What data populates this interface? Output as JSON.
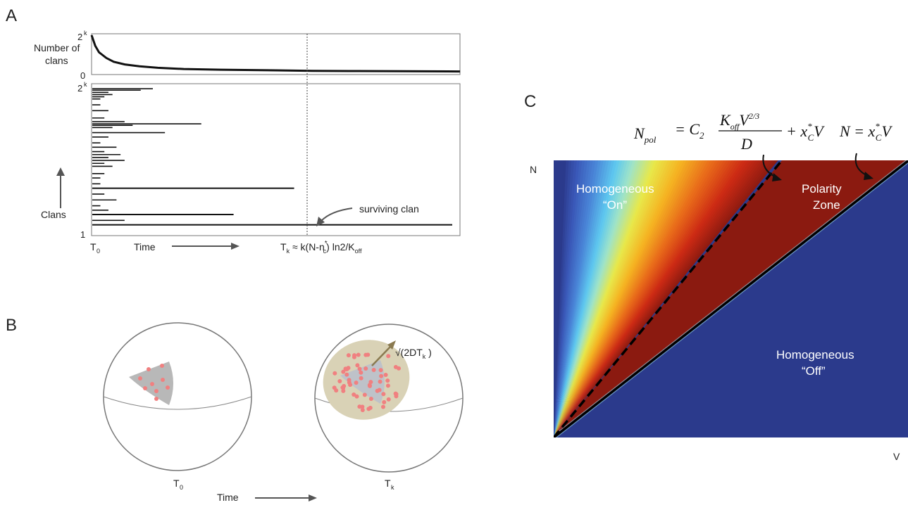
{
  "panel_a": {
    "letter": "A",
    "top_plot": {
      "y_label_line1": "Number of",
      "y_label_line2": "clans",
      "y_tick_top": "2",
      "y_tick_top_sup": "k",
      "y_tick_bottom": "0",
      "decay_curve": [
        [
          0,
          1.0
        ],
        [
          0.01,
          0.72
        ],
        [
          0.02,
          0.55
        ],
        [
          0.04,
          0.4
        ],
        [
          0.06,
          0.3
        ],
        [
          0.09,
          0.23
        ],
        [
          0.13,
          0.18
        ],
        [
          0.18,
          0.14
        ],
        [
          0.25,
          0.11
        ],
        [
          0.35,
          0.09
        ],
        [
          0.5,
          0.075
        ],
        [
          0.6,
          0.06
        ],
        [
          0.7,
          0.055
        ],
        [
          0.85,
          0.05
        ],
        [
          1.0,
          0.045
        ]
      ]
    },
    "bottom_plot": {
      "y_label": "Clans",
      "y_tick_top": "2",
      "y_tick_top_sup": "k",
      "y_tick_bottom": "1",
      "annotation": "surviving clan",
      "clan_lifetimes": [
        [
          0.02,
          0.15
        ],
        [
          0.03,
          0.12
        ],
        [
          0.045,
          0.04
        ],
        [
          0.06,
          0.05
        ],
        [
          0.075,
          0.03
        ],
        [
          0.09,
          0.02
        ],
        [
          0.13,
          0.02
        ],
        [
          0.17,
          0.04
        ],
        [
          0.22,
          0.03
        ],
        [
          0.245,
          0.08
        ],
        [
          0.26,
          0.27
        ],
        [
          0.27,
          0.1
        ],
        [
          0.285,
          0.05
        ],
        [
          0.32,
          0.18
        ],
        [
          0.35,
          0.04
        ],
        [
          0.39,
          0.02
        ],
        [
          0.42,
          0.06
        ],
        [
          0.45,
          0.03
        ],
        [
          0.47,
          0.07
        ],
        [
          0.49,
          0.04
        ],
        [
          0.51,
          0.08
        ],
        [
          0.53,
          0.03
        ],
        [
          0.55,
          0.05
        ],
        [
          0.6,
          0.03
        ],
        [
          0.63,
          0.02
        ],
        [
          0.67,
          0.02
        ],
        [
          0.7,
          0.5
        ],
        [
          0.74,
          0.03
        ],
        [
          0.78,
          0.06
        ],
        [
          0.82,
          0.02
        ],
        [
          0.85,
          0.04
        ],
        [
          0.88,
          0.35
        ],
        [
          0.92,
          0.08
        ],
        [
          0.95,
          1.0
        ]
      ],
      "dashed_x": 0.5
    },
    "x_label_t0": "T",
    "x_label_t0_sub": "0",
    "x_label_time": "Time",
    "tk_formula_parts": {
      "t": "T",
      "k_sub": "k",
      "approx": " ≈ k(N-n",
      "star_sup": "*",
      "c_sub": "c",
      "rest": ") ln2/K",
      "off_sub": "off"
    }
  },
  "panel_b": {
    "letter": "B",
    "t0_label": "T",
    "t0_sub": "0",
    "tk_label": "T",
    "tk_sub": "k",
    "time_label": "Time",
    "diffusion_label": "√(2DT",
    "diffusion_sub": "k",
    "diffusion_close": " )",
    "colors": {
      "patch": "#b8b8b8",
      "halo": "#d9d2b6",
      "dot": "#f08080",
      "arrow": "#8a7a50"
    }
  },
  "panel_c": {
    "letter": "C",
    "y_axis": "N",
    "x_axis": "V",
    "region_on_1": "Homogeneous",
    "region_on_2": "“On”",
    "region_polarity_1": "Polarity",
    "region_polarity_2": "Zone",
    "region_off_1": "Homogeneous",
    "region_off_2": "“Off”",
    "eq1": {
      "lhs": "N",
      "lhs_sub": "pol",
      "eq": "= C",
      "c_sub": "2",
      "num_k": "K",
      "num_k_sub": "off",
      "num_v": "V",
      "num_exp": "2/3",
      "den": "D",
      "plus": "+ x",
      "x_sup": "*",
      "x_sub": "C",
      "v": "V"
    },
    "eq2": {
      "lhs": "N = x",
      "x_sup": "*",
      "x_sub": "C",
      "v": "V"
    },
    "colors": {
      "background": "#2b3a8c",
      "dark_red": "#8b1a10"
    }
  }
}
